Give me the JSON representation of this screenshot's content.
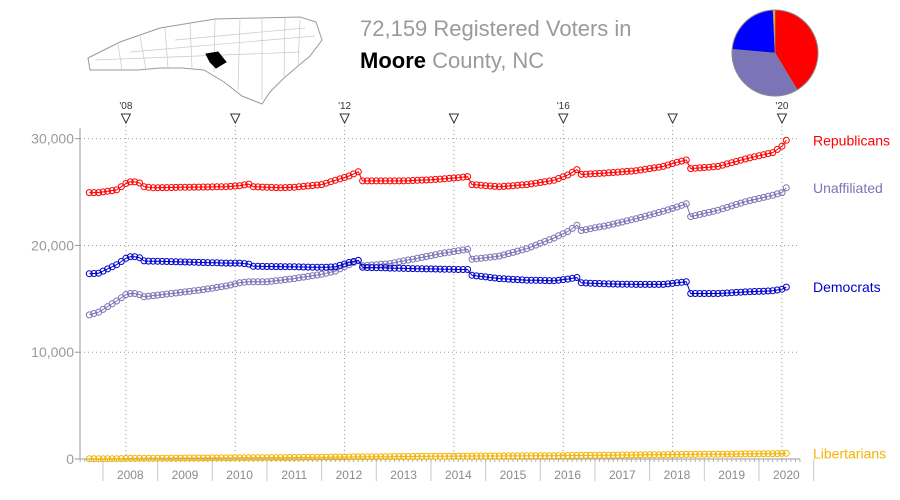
{
  "header": {
    "title_line1": "72,159 Registered Voters in",
    "county_name": "Moore",
    "title_line2_rest": "County, NC"
  },
  "pie": {
    "slices": [
      {
        "label": "Republicans",
        "value": 29830,
        "color": "#ff0000"
      },
      {
        "label": "Unaffiliated",
        "value": 25300,
        "color": "#7b74b6"
      },
      {
        "label": "Democrats",
        "value": 16500,
        "color": "#0000ff"
      },
      {
        "label": "Libertarians",
        "value": 530,
        "color": "#f5b400"
      }
    ]
  },
  "chart_data": {
    "type": "line",
    "title": "",
    "xlabel": "",
    "ylabel": "",
    "xlim": [
      2007.58,
      2020.75
    ],
    "ylim": [
      0,
      31000
    ],
    "y_ticks": [
      {
        "value": 0,
        "label": "0"
      },
      {
        "value": 10000,
        "label": "10,000"
      },
      {
        "value": 20000,
        "label": "20,000"
      },
      {
        "value": 30000,
        "label": "30,000"
      }
    ],
    "x_year_labels": [
      "2008",
      "2009",
      "2010",
      "2011",
      "2012",
      "2013",
      "2014",
      "2015",
      "2016",
      "2017",
      "2018",
      "2019",
      "2020"
    ],
    "election_markers": [
      {
        "x": 2008.42,
        "label": "'08"
      },
      {
        "x": 2010.42,
        "label": ""
      },
      {
        "x": 2012.42,
        "label": "'12"
      },
      {
        "x": 2014.42,
        "label": ""
      },
      {
        "x": 2016.42,
        "label": "'16"
      },
      {
        "x": 2018.42,
        "label": ""
      },
      {
        "x": 2020.42,
        "label": "'20"
      }
    ],
    "grid": "dotted",
    "legend": "right-end-labels",
    "series": [
      {
        "name": "Republicans",
        "color": "#ff0000",
        "points": [
          [
            2007.75,
            24950
          ],
          [
            2007.92,
            24950
          ],
          [
            2008.25,
            25200
          ],
          [
            2008.42,
            25800
          ],
          [
            2008.5,
            25950
          ],
          [
            2008.58,
            25950
          ],
          [
            2008.67,
            25850
          ],
          [
            2008.75,
            25500
          ],
          [
            2008.92,
            25400
          ],
          [
            2009.5,
            25450
          ],
          [
            2010.25,
            25500
          ],
          [
            2010.5,
            25600
          ],
          [
            2010.67,
            25750
          ],
          [
            2010.75,
            25500
          ],
          [
            2011.25,
            25400
          ],
          [
            2011.5,
            25450
          ],
          [
            2012.0,
            25700
          ],
          [
            2012.25,
            26100
          ],
          [
            2012.5,
            26500
          ],
          [
            2012.67,
            26900
          ],
          [
            2012.75,
            26050
          ],
          [
            2013.5,
            26050
          ],
          [
            2014.0,
            26150
          ],
          [
            2014.5,
            26350
          ],
          [
            2014.67,
            26450
          ],
          [
            2014.75,
            25700
          ],
          [
            2015.25,
            25500
          ],
          [
            2015.75,
            25700
          ],
          [
            2016.25,
            26100
          ],
          [
            2016.5,
            26600
          ],
          [
            2016.67,
            27100
          ],
          [
            2016.75,
            26650
          ],
          [
            2017.25,
            26800
          ],
          [
            2017.75,
            27000
          ],
          [
            2018.25,
            27400
          ],
          [
            2018.5,
            27800
          ],
          [
            2018.67,
            28000
          ],
          [
            2018.75,
            27200
          ],
          [
            2019.25,
            27400
          ],
          [
            2019.75,
            28100
          ],
          [
            2020.25,
            28700
          ],
          [
            2020.42,
            29300
          ],
          [
            2020.5,
            29850
          ]
        ]
      },
      {
        "name": "Unaffiliated",
        "color": "#7b74b6",
        "points": [
          [
            2007.75,
            13500
          ],
          [
            2007.92,
            13750
          ],
          [
            2008.25,
            14800
          ],
          [
            2008.42,
            15400
          ],
          [
            2008.5,
            15500
          ],
          [
            2008.58,
            15500
          ],
          [
            2008.67,
            15400
          ],
          [
            2008.75,
            15200
          ],
          [
            2009.25,
            15500
          ],
          [
            2009.75,
            15800
          ],
          [
            2010.25,
            16200
          ],
          [
            2010.5,
            16500
          ],
          [
            2010.67,
            16600
          ],
          [
            2011.0,
            16600
          ],
          [
            2011.5,
            16900
          ],
          [
            2012.0,
            17300
          ],
          [
            2012.25,
            17600
          ],
          [
            2012.5,
            18200
          ],
          [
            2012.67,
            18600
          ],
          [
            2012.75,
            18100
          ],
          [
            2013.25,
            18300
          ],
          [
            2013.75,
            18800
          ],
          [
            2014.25,
            19300
          ],
          [
            2014.5,
            19500
          ],
          [
            2014.67,
            19650
          ],
          [
            2014.75,
            18700
          ],
          [
            2015.25,
            19000
          ],
          [
            2015.75,
            19700
          ],
          [
            2016.25,
            20700
          ],
          [
            2016.5,
            21300
          ],
          [
            2016.67,
            21900
          ],
          [
            2016.75,
            21400
          ],
          [
            2017.25,
            21900
          ],
          [
            2017.75,
            22500
          ],
          [
            2018.25,
            23200
          ],
          [
            2018.5,
            23600
          ],
          [
            2018.67,
            23900
          ],
          [
            2018.75,
            22700
          ],
          [
            2019.25,
            23300
          ],
          [
            2019.75,
            24100
          ],
          [
            2020.25,
            24700
          ],
          [
            2020.42,
            24950
          ],
          [
            2020.5,
            25400
          ]
        ]
      },
      {
        "name": "Democrats",
        "color": "#0000cc",
        "points": [
          [
            2007.75,
            17350
          ],
          [
            2007.92,
            17400
          ],
          [
            2008.25,
            18200
          ],
          [
            2008.42,
            18800
          ],
          [
            2008.5,
            18950
          ],
          [
            2008.58,
            18950
          ],
          [
            2008.67,
            18850
          ],
          [
            2008.75,
            18550
          ],
          [
            2009.5,
            18450
          ],
          [
            2010.25,
            18350
          ],
          [
            2010.5,
            18350
          ],
          [
            2010.67,
            18250
          ],
          [
            2010.75,
            18050
          ],
          [
            2011.5,
            18000
          ],
          [
            2012.0,
            17950
          ],
          [
            2012.25,
            18000
          ],
          [
            2012.5,
            18400
          ],
          [
            2012.67,
            18600
          ],
          [
            2012.75,
            17950
          ],
          [
            2013.5,
            17850
          ],
          [
            2014.0,
            17800
          ],
          [
            2014.5,
            17750
          ],
          [
            2014.67,
            17750
          ],
          [
            2014.75,
            17200
          ],
          [
            2015.25,
            16900
          ],
          [
            2015.75,
            16750
          ],
          [
            2016.25,
            16700
          ],
          [
            2016.5,
            16850
          ],
          [
            2016.67,
            17000
          ],
          [
            2016.75,
            16500
          ],
          [
            2017.25,
            16400
          ],
          [
            2017.75,
            16350
          ],
          [
            2018.25,
            16350
          ],
          [
            2018.5,
            16500
          ],
          [
            2018.67,
            16600
          ],
          [
            2018.75,
            15500
          ],
          [
            2019.25,
            15500
          ],
          [
            2019.75,
            15650
          ],
          [
            2020.25,
            15750
          ],
          [
            2020.42,
            15900
          ],
          [
            2020.5,
            16100
          ]
        ]
      },
      {
        "name": "Libertarians",
        "color": "#f5b400",
        "points": [
          [
            2007.75,
            20
          ],
          [
            2007.92,
            20
          ],
          [
            2008.25,
            30
          ],
          [
            2008.42,
            50
          ],
          [
            2008.75,
            60
          ],
          [
            2009.5,
            90
          ],
          [
            2010.5,
            110
          ],
          [
            2011.5,
            140
          ],
          [
            2012.5,
            190
          ],
          [
            2013.5,
            230
          ],
          [
            2014.5,
            270
          ],
          [
            2015.5,
            290
          ],
          [
            2016.5,
            320
          ],
          [
            2017.5,
            370
          ],
          [
            2018.5,
            420
          ],
          [
            2019.5,
            460
          ],
          [
            2020.25,
            500
          ],
          [
            2020.5,
            530
          ]
        ]
      }
    ]
  }
}
